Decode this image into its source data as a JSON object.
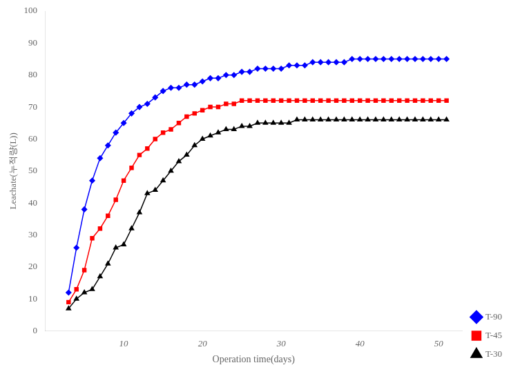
{
  "chart_data": {
    "type": "line",
    "xlabel": "Operation time(days)",
    "ylabel": "Leachate(누적량(L))",
    "x": [
      3,
      4,
      5,
      6,
      7,
      8,
      9,
      10,
      11,
      12,
      13,
      14,
      15,
      16,
      17,
      18,
      19,
      20,
      21,
      22,
      23,
      24,
      25,
      26,
      27,
      28,
      29,
      30,
      31,
      32,
      33,
      34,
      35,
      36,
      37,
      38,
      39,
      40,
      41,
      42,
      43,
      44,
      45,
      46,
      47,
      48,
      49,
      50,
      51
    ],
    "series": [
      {
        "name": "T-90",
        "color": "#0000FF",
        "marker": "diamond",
        "values": [
          12,
          26,
          38,
          47,
          54,
          58,
          62,
          65,
          68,
          70,
          71,
          73,
          75,
          76,
          76,
          77,
          77,
          78,
          79,
          79,
          80,
          80,
          81,
          81,
          82,
          82,
          82,
          82,
          83,
          83,
          83,
          84,
          84,
          84,
          84,
          84,
          85,
          85,
          85,
          85,
          85,
          85,
          85,
          85,
          85,
          85,
          85,
          85,
          85
        ]
      },
      {
        "name": "T-45",
        "color": "#FF0000",
        "marker": "square",
        "values": [
          9,
          13,
          19,
          29,
          32,
          36,
          41,
          47,
          51,
          55,
          57,
          60,
          62,
          63,
          65,
          67,
          68,
          69,
          70,
          70,
          71,
          71,
          72,
          72,
          72,
          72,
          72,
          72,
          72,
          72,
          72,
          72,
          72,
          72,
          72,
          72,
          72,
          72,
          72,
          72,
          72,
          72,
          72,
          72,
          72,
          72,
          72,
          72,
          72
        ]
      },
      {
        "name": "T-30",
        "color": "#000000",
        "marker": "triangle",
        "values": [
          7,
          10,
          12,
          13,
          17,
          21,
          26,
          27,
          32,
          37,
          43,
          44,
          47,
          50,
          53,
          55,
          58,
          60,
          61,
          62,
          63,
          63,
          64,
          64,
          65,
          65,
          65,
          65,
          65,
          66,
          66,
          66,
          66,
          66,
          66,
          66,
          66,
          66,
          66,
          66,
          66,
          66,
          66,
          66,
          66,
          66,
          66,
          66,
          66
        ]
      }
    ],
    "xlim": [
      0,
      53
    ],
    "ylim": [
      0,
      100
    ],
    "xticks": [
      10,
      20,
      30,
      40,
      50
    ],
    "yticks": [
      0,
      10,
      20,
      30,
      40,
      50,
      60,
      70,
      80,
      90,
      100
    ],
    "grid": false,
    "legend": "lower right"
  }
}
